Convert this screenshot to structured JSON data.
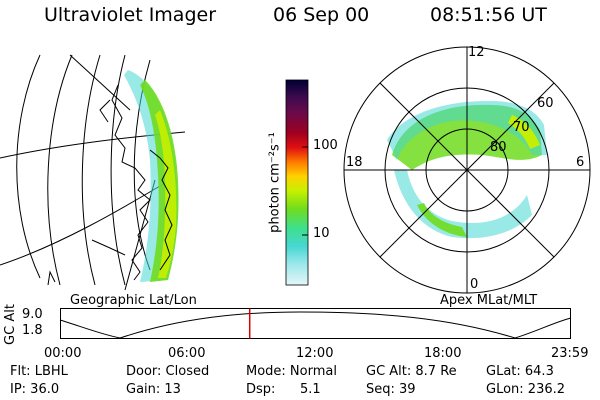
{
  "header": {
    "instrument": "Ultraviolet Imager",
    "date": "06 Sep 00",
    "time": "08:51:56 UT"
  },
  "geographic_panel": {
    "caption": "Geographic Lat/Lon"
  },
  "colorbar": {
    "unit_label": "photon cm⁻²s⁻¹",
    "ticks": [
      "100",
      "10"
    ],
    "scale": "log",
    "colors": [
      "#000033",
      "#3b0a4f",
      "#6a0a4a",
      "#a00020",
      "#e01010",
      "#ff7a00",
      "#ffd200",
      "#c8f000",
      "#6fdc1e",
      "#3ee08a",
      "#46d7d2",
      "#9ee8ec",
      "#e4f6f8"
    ]
  },
  "polar_panel": {
    "caption": "Apex MLat/MLT",
    "mlt_labels": {
      "top": "12",
      "left": "18",
      "right": "6",
      "bottom": "0"
    },
    "lat_labels": [
      "60",
      "70",
      "80"
    ]
  },
  "orbit_plot": {
    "y_axis_label": "GC Alt",
    "y_ticks": [
      "9.0",
      "1.8"
    ],
    "x_ticks": [
      "00:00",
      "06:00",
      "12:00",
      "18:00",
      "23:59"
    ],
    "marker_time_fraction": 0.371,
    "marker_color": "#e00000"
  },
  "info": {
    "flt": "Flt: LBHL",
    "ip": "IP: 36.0",
    "door": "Door: Closed",
    "gain": "Gain: 13",
    "mode": "Mode: Normal",
    "dsp_label": "Dsp:",
    "dsp_value": "5.1",
    "gc_alt": "GC Alt: 8.7 Re",
    "seq": "Seq: 39",
    "glat": "GLat:  64.3",
    "glon": "GLon: 236.2"
  }
}
